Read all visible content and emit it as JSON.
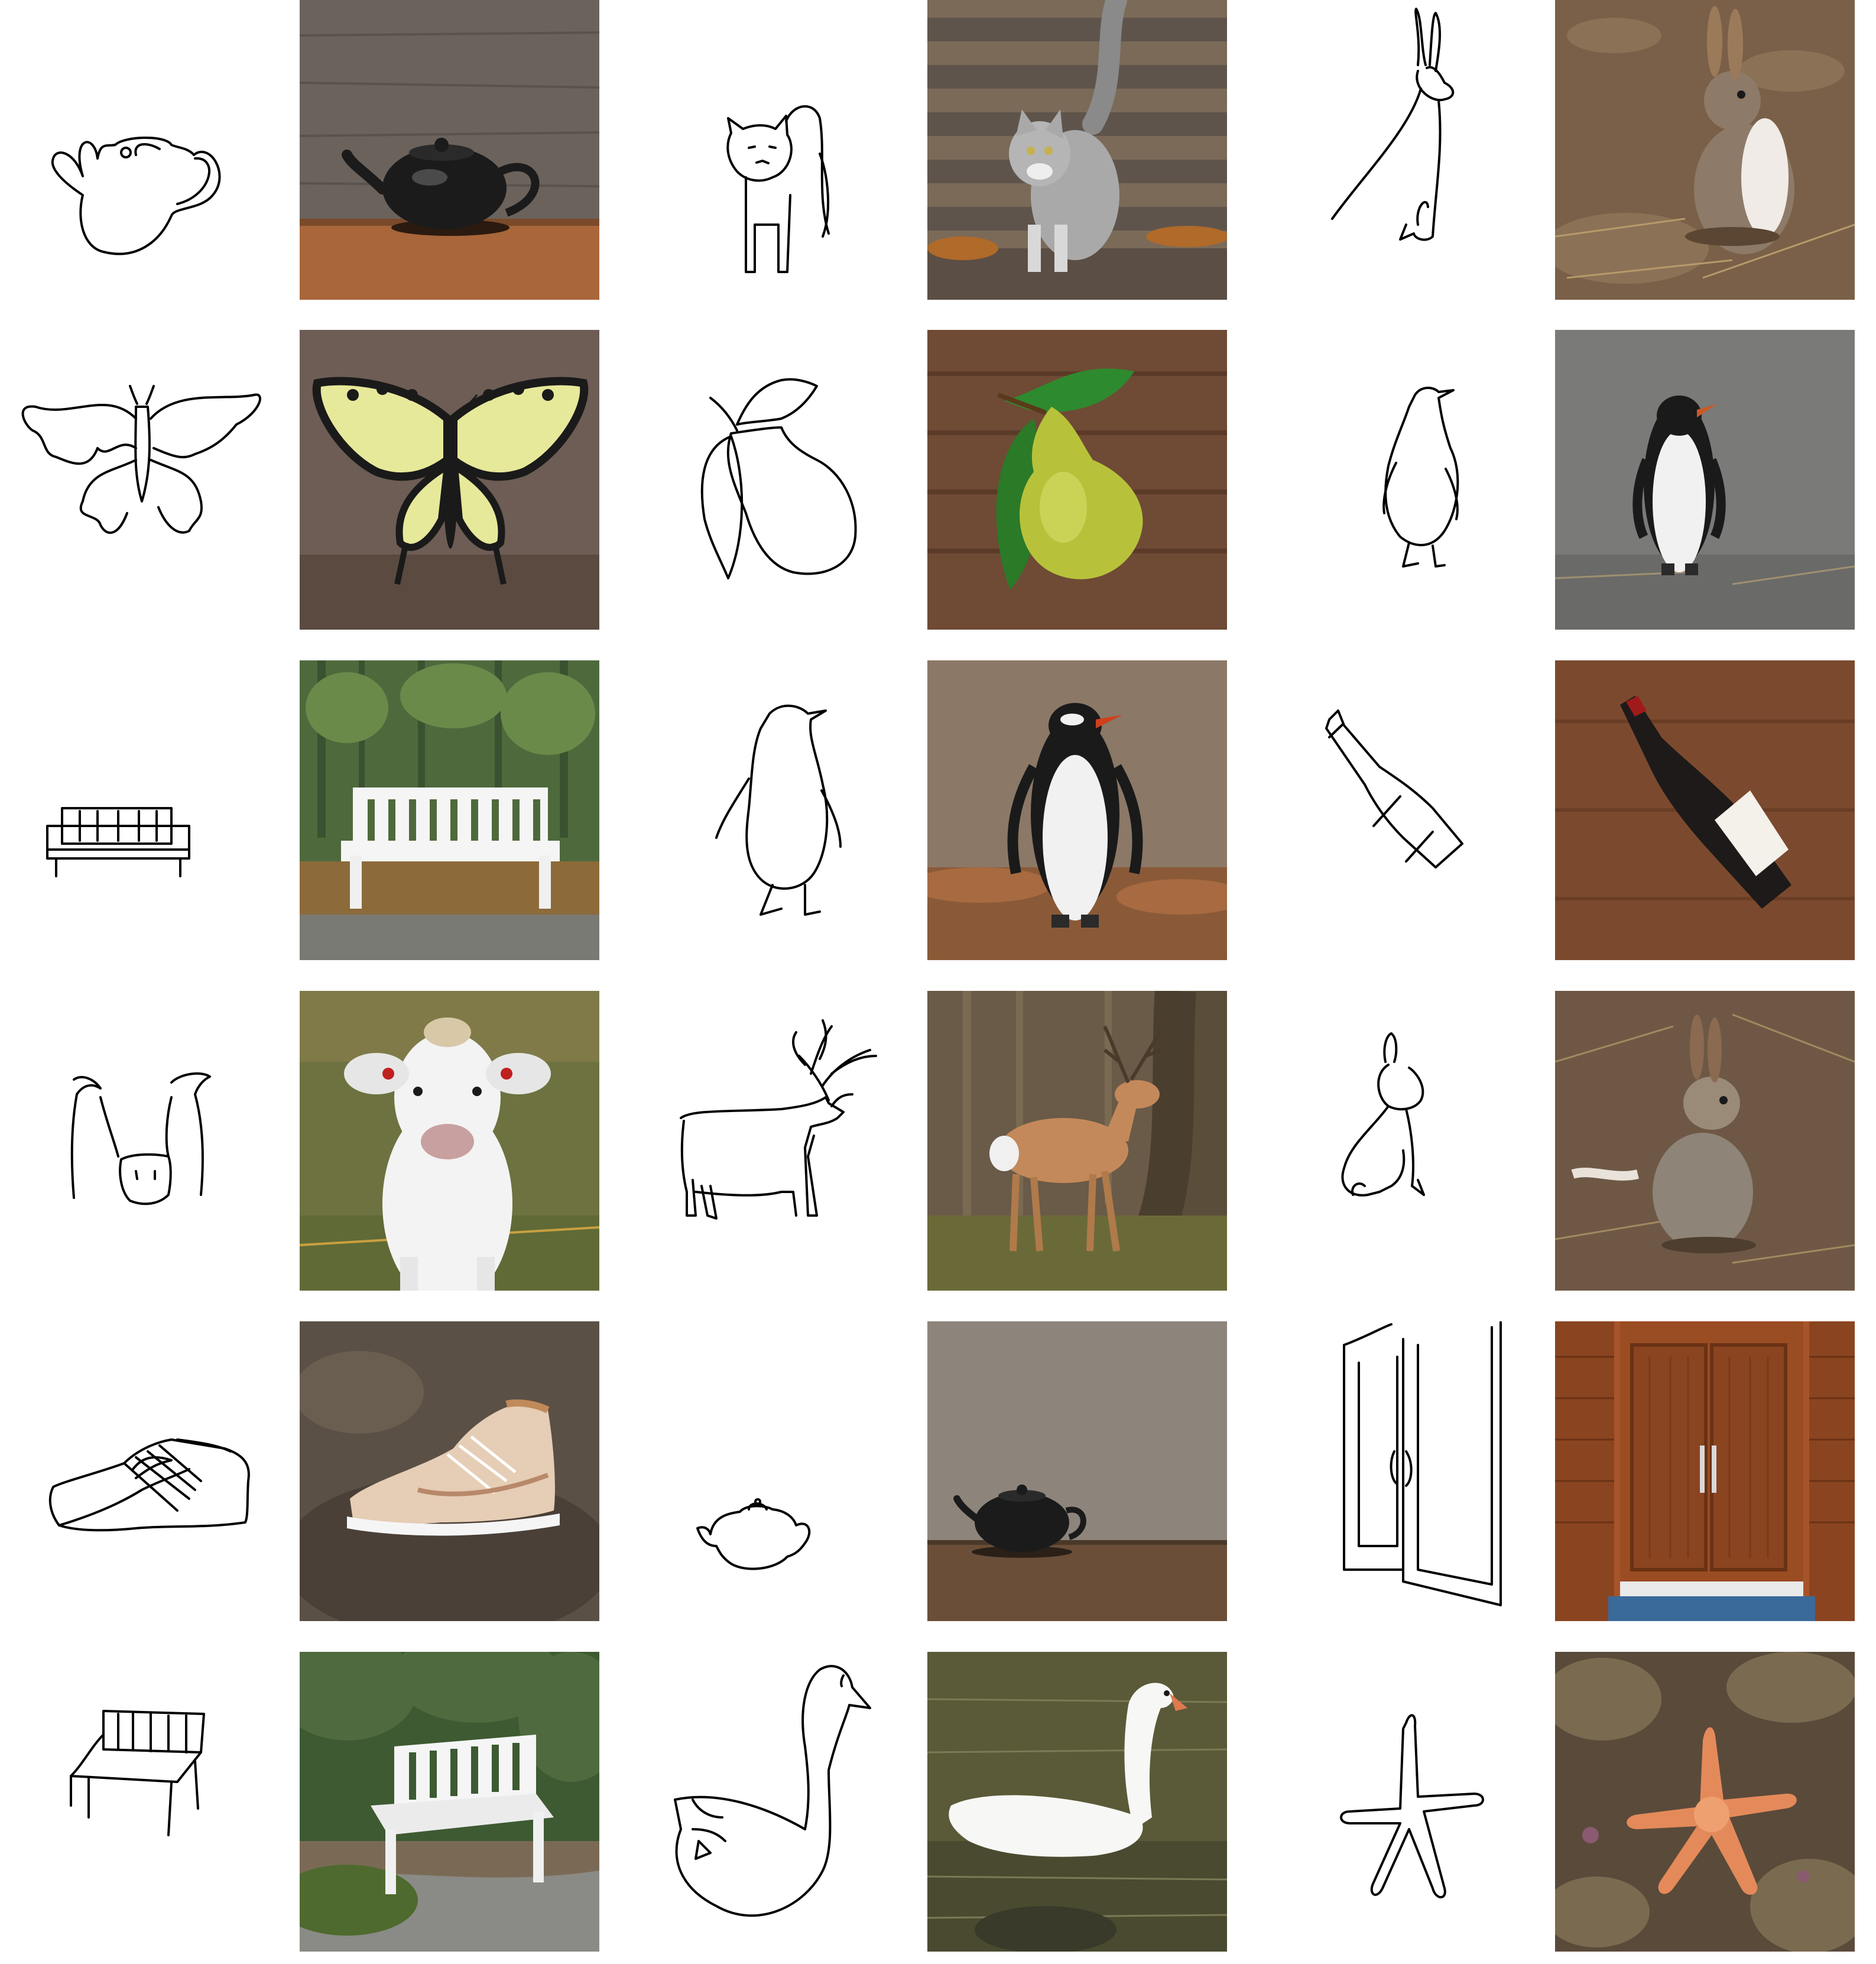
{
  "grid": {
    "rows": 6,
    "columns": 6,
    "pairs": [
      {
        "sketch_icon": "teapot-sketch-icon",
        "photo": "teapot-photo",
        "colors": {
          "bg": "#6b625c",
          "table": "#a8663a",
          "object": "#1b1b1b"
        }
      },
      {
        "sketch_icon": "cat-sketch-icon",
        "photo": "cat-photo",
        "colors": {
          "bg": "#7b6a58",
          "table": "#5f544b",
          "object": "#a9a9a9"
        }
      },
      {
        "sketch_icon": "rabbit-sketch-icon",
        "photo": "rabbit-photo",
        "colors": {
          "bg": "#7a6048",
          "table": "#6b5540",
          "object": "#8d7a68"
        }
      },
      {
        "sketch_icon": "butterfly-sketch-icon",
        "photo": "butterfly-photo",
        "colors": {
          "bg": "#6d5d55",
          "table": "#5a4a40",
          "object": "#e6e89a"
        }
      },
      {
        "sketch_icon": "pear-sketch-icon",
        "photo": "pear-photo",
        "colors": {
          "bg": "#6f4a35",
          "table": "#5b3a28",
          "object": "#b7c23a"
        }
      },
      {
        "sketch_icon": "penguin-sketch-icon",
        "photo": "penguin-photo-road",
        "colors": {
          "bg": "#7a7a78",
          "table": "#6a6a68",
          "object": "#f1f1f1"
        }
      },
      {
        "sketch_icon": "bench-sketch-icon",
        "photo": "bench-photo-forest",
        "colors": {
          "bg": "#4e6a3c",
          "table": "#8c6a3a",
          "object": "#f5f5f5"
        }
      },
      {
        "sketch_icon": "penguin-sketch-icon",
        "photo": "penguin-photo-rocks",
        "colors": {
          "bg": "#8b7866",
          "table": "#8a5a38",
          "object": "#f1f1f1"
        }
      },
      {
        "sketch_icon": "wine-bottle-sketch-icon",
        "photo": "wine-bottle-photo",
        "colors": {
          "bg": "#7b4a2e",
          "table": "#6a3e25",
          "object": "#1e1a1a"
        }
      },
      {
        "sketch_icon": "cow-sketch-icon",
        "photo": "cow-photo",
        "colors": {
          "bg": "#6d7240",
          "table": "#5f6a36",
          "object": "#f3f3f3"
        }
      },
      {
        "sketch_icon": "deer-sketch-icon",
        "photo": "deer-photo",
        "colors": {
          "bg": "#6a5a48",
          "table": "#6a6a38",
          "object": "#c4895a"
        }
      },
      {
        "sketch_icon": "rabbit-sketch-icon",
        "photo": "rabbit-photo-sitting",
        "colors": {
          "bg": "#6e5845",
          "table": "#5f4a38",
          "object": "#8e8478"
        }
      },
      {
        "sketch_icon": "sneaker-sketch-icon",
        "photo": "sneaker-photo",
        "colors": {
          "bg": "#5a5046",
          "table": "#4a4038",
          "object": "#e6cdb5"
        }
      },
      {
        "sketch_icon": "teapot-sketch-icon-small",
        "photo": "teapot-photo-small",
        "colors": {
          "bg": "#8d857c",
          "table": "#6a4e38",
          "object": "#1b1b1b"
        }
      },
      {
        "sketch_icon": "double-door-sketch-icon",
        "photo": "double-door-photo",
        "colors": {
          "bg": "#a8542a",
          "table": "#3a6a9a",
          "object": "#8a4420"
        }
      },
      {
        "sketch_icon": "bench-sketch-icon-small",
        "photo": "bench-photo-trees",
        "colors": {
          "bg": "#3d5a32",
          "table": "#7a6a55",
          "object": "#f5f5f5"
        }
      },
      {
        "sketch_icon": "swan-sketch-icon",
        "photo": "swan-photo",
        "colors": {
          "bg": "#5a5a38",
          "table": "#4a4a30",
          "object": "#f7f7f5"
        }
      },
      {
        "sketch_icon": "starfish-sketch-icon",
        "photo": "starfish-photo",
        "colors": {
          "bg": "#5a4a3a",
          "table": "#4a3e30",
          "object": "#e48a5a"
        }
      }
    ]
  }
}
